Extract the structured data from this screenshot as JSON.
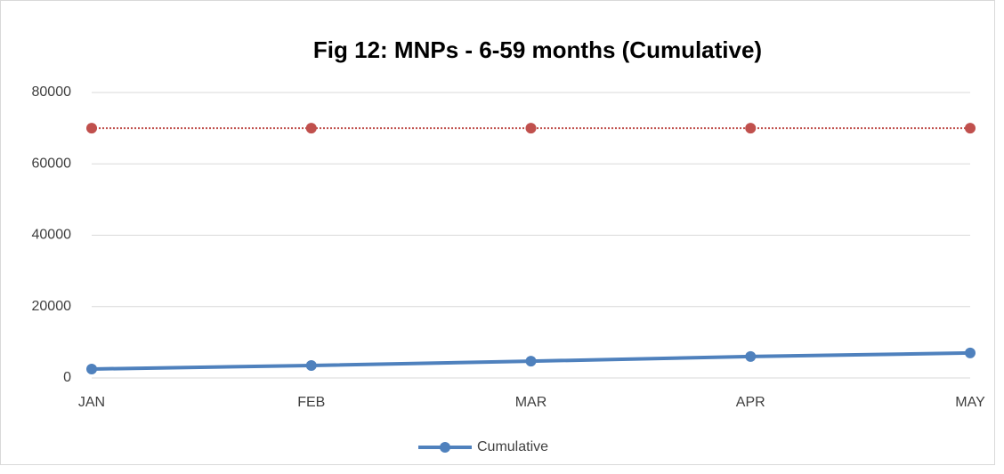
{
  "chart_data": {
    "type": "line",
    "title": "Fig 12: MNPs - 6-59 months (Cumulative)",
    "categories": [
      "JAN",
      "FEB",
      "MAR",
      "APR",
      "MAY"
    ],
    "series": [
      {
        "name": "Cumulative",
        "color": "#4f81bd",
        "style": "solid",
        "values": [
          2500,
          3500,
          4700,
          6000,
          7000
        ]
      },
      {
        "color": "#c0504d",
        "style": "dotted",
        "values": [
          70000,
          70000,
          70000,
          70000,
          70000
        ]
      }
    ],
    "ylim": [
      0,
      80000
    ],
    "yticks": [
      0,
      20000,
      40000,
      60000,
      80000
    ],
    "grid": true,
    "legend": "bottom"
  }
}
